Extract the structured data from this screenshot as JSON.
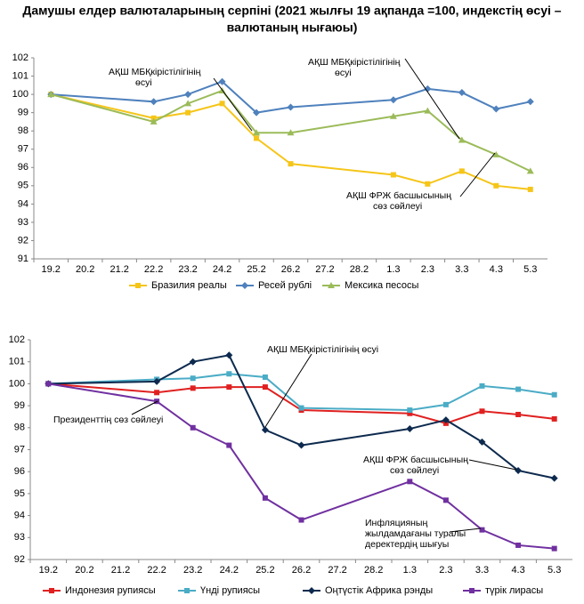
{
  "title_lines": [
    "Дамушы елдер валюталарының серпіні (2021 жылғы 19 ақпанда =100, индекстің өсуі –",
    "валютаның нығаюы)"
  ],
  "chart_data": [
    {
      "type": "line",
      "grid": false,
      "legend": "bottom",
      "categories": [
        "19.2",
        "20.2",
        "21.2",
        "22.2",
        "23.2",
        "24.2",
        "25.2",
        "26.2",
        "27.2",
        "28.2",
        "1.3",
        "2.3",
        "3.3",
        "4.3",
        "5.3"
      ],
      "x": [
        "19.2",
        "22.2",
        "23.2",
        "24.2",
        "25.2",
        "26.2",
        "1.3",
        "2.3",
        "3.3",
        "4.3",
        "5.3"
      ],
      "ylim": [
        91,
        102
      ],
      "yticks": [
        91,
        92,
        93,
        94,
        95,
        96,
        97,
        98,
        99,
        100,
        101,
        102
      ],
      "series": [
        {
          "name": "Бразилия реалы",
          "color": "#f5c518",
          "marker": "square",
          "values": [
            100.0,
            98.7,
            99.0,
            99.5,
            97.6,
            96.2,
            95.6,
            95.1,
            95.8,
            95.0,
            94.8
          ]
        },
        {
          "name": "Ресей рублі",
          "color": "#4f81bd",
          "marker": "diamond",
          "values": [
            100.0,
            99.6,
            100.0,
            100.7,
            99.0,
            99.3,
            99.7,
            100.3,
            100.1,
            99.2,
            99.6
          ]
        },
        {
          "name": "Мексика песосы",
          "color": "#9bbb59",
          "marker": "triangle",
          "values": [
            100.0,
            98.5,
            99.5,
            100.2,
            97.9,
            97.9,
            98.8,
            99.1,
            97.5,
            96.7,
            95.8
          ]
        }
      ],
      "annotations": [
        {
          "lines": [
            "АҚШ МБҚкірістілігінің",
            "өсуі"
          ]
        },
        {
          "lines": [
            "АҚШ МБҚкірістілігінің",
            "өсуі"
          ]
        },
        {
          "lines": [
            "АҚШ ФРЖ басшысының",
            "сөз сөйлеуі"
          ]
        }
      ]
    },
    {
      "type": "line",
      "grid": false,
      "legend": "bottom",
      "categories": [
        "19.2",
        "20.2",
        "21.2",
        "22.2",
        "23.2",
        "24.2",
        "25.2",
        "26.2",
        "27.2",
        "28.2",
        "1.3",
        "2.3",
        "3.3",
        "4.3",
        "5.3"
      ],
      "x": [
        "19.2",
        "22.2",
        "23.2",
        "24.2",
        "25.2",
        "26.2",
        "1.3",
        "2.3",
        "3.3",
        "4.3",
        "5.3"
      ],
      "ylim": [
        92,
        102
      ],
      "yticks": [
        92,
        93,
        94,
        95,
        96,
        97,
        98,
        99,
        100,
        101,
        102
      ],
      "series": [
        {
          "name": "Индонезия рупиясы",
          "color": "#e02020",
          "marker": "square",
          "values": [
            100.0,
            99.6,
            99.8,
            99.85,
            99.85,
            98.8,
            98.65,
            98.2,
            98.75,
            98.6,
            98.4
          ]
        },
        {
          "name": "Үнді рупиясы",
          "color": "#4bacc6",
          "marker": "square",
          "values": [
            100.0,
            100.2,
            100.25,
            100.45,
            100.3,
            98.9,
            98.8,
            99.05,
            99.9,
            99.75,
            99.5
          ]
        },
        {
          "name": "Оңтүстік Африка рэнды",
          "color": "#0d2a4e",
          "marker": "diamond",
          "values": [
            100.0,
            100.1,
            101.0,
            101.3,
            97.9,
            97.2,
            97.95,
            98.35,
            97.35,
            96.05,
            95.7
          ]
        },
        {
          "name": "түрік лирасы",
          "color": "#7030a0",
          "marker": "square",
          "values": [
            100.0,
            99.2,
            98.0,
            97.2,
            94.8,
            93.8,
            95.55,
            94.7,
            93.35,
            92.65,
            92.5
          ]
        }
      ],
      "annotations": [
        {
          "lines": [
            "АҚШ МБҚкірістілігінің өсуі"
          ]
        },
        {
          "lines": [
            "Президенттің сөз сөйлеуі"
          ]
        },
        {
          "lines": [
            "АҚШ ФРЖ басшысының",
            "сөз сөйлеуі"
          ]
        },
        {
          "lines": [
            "Инфляцияның",
            "жылдамдағаны туралы",
            "деректердің шығуы"
          ]
        }
      ]
    }
  ]
}
